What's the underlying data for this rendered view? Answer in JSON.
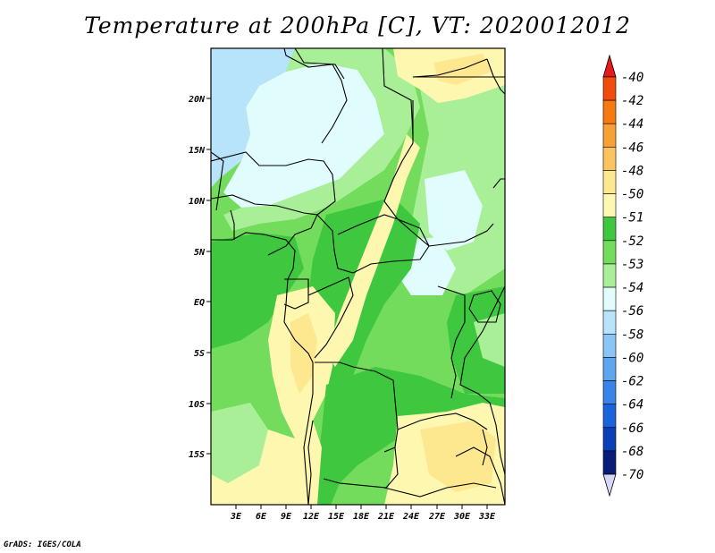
{
  "title": "Temperature at 200hPa [C], VT: 2020012012",
  "credit": "GrADS: IGES/COLA",
  "lat_labels": [
    "20N",
    "15N",
    "10N",
    "5N",
    "EQ",
    "5S",
    "10S",
    "15S"
  ],
  "lon_labels": [
    "3E",
    "6E",
    "9E",
    "12E",
    "15E",
    "18E",
    "21E",
    "24E",
    "27E",
    "30E",
    "33E"
  ],
  "colorbar": {
    "levels": [
      "-40",
      "-42",
      "-44",
      "-46",
      "-48",
      "-50",
      "-51",
      "-52",
      "-53",
      "-54",
      "-56",
      "-58",
      "-60",
      "-62",
      "-64",
      "-66",
      "-68",
      "-70"
    ],
    "colors": [
      "#e41a1c",
      "#f14d0a",
      "#f57a0f",
      "#f8a033",
      "#fcc45e",
      "#fde88f",
      "#fdf7b0",
      "#3fc83f",
      "#73dc5c",
      "#a8ef97",
      "#e0fcfd",
      "#b7e3fb",
      "#8ac5f6",
      "#5ea6f0",
      "#3785e8",
      "#1964dc",
      "#0a3fb8",
      "#081c7a",
      "#d6d6f5"
    ]
  },
  "colors": {
    "land_green_dark": "#3fc83f",
    "land_green_mid": "#73dc5c",
    "land_green_light": "#a8ef97",
    "pale_cyan": "#e0fcfd",
    "pale_blue": "#b7e3fb",
    "pale_yellow": "#fdf7b0",
    "light_yellow": "#fde88f"
  }
}
